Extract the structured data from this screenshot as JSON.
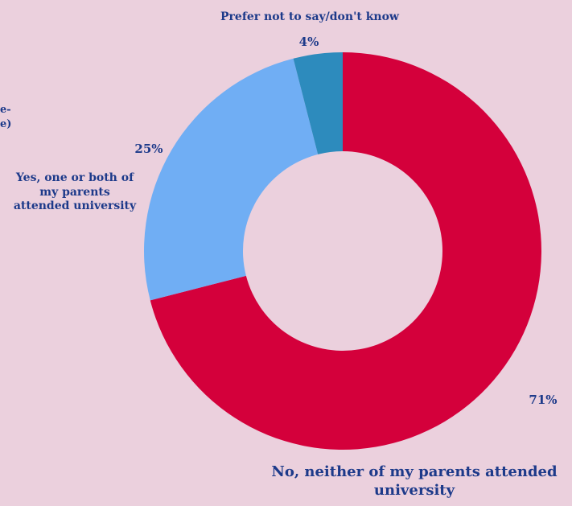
{
  "chart_data": {
    "type": "pie",
    "donut": true,
    "slices": [
      {
        "label": "No, neither of my parents attended university",
        "value": 71,
        "value_label": "71%",
        "color": "#d4003b"
      },
      {
        "label": "Yes, one or both of my parents attended university",
        "value": 25,
        "value_label": "25%",
        "color": "#70aef4"
      },
      {
        "label": "Prefer not to say/don't know",
        "value": 4,
        "value_label": "4%",
        "color": "#2d8bbd"
      }
    ],
    "clipped_left_text": [
      "e-",
      "e)"
    ]
  },
  "colors": {
    "background": "#ebd0dd",
    "label_text": "#1d3a8a"
  }
}
